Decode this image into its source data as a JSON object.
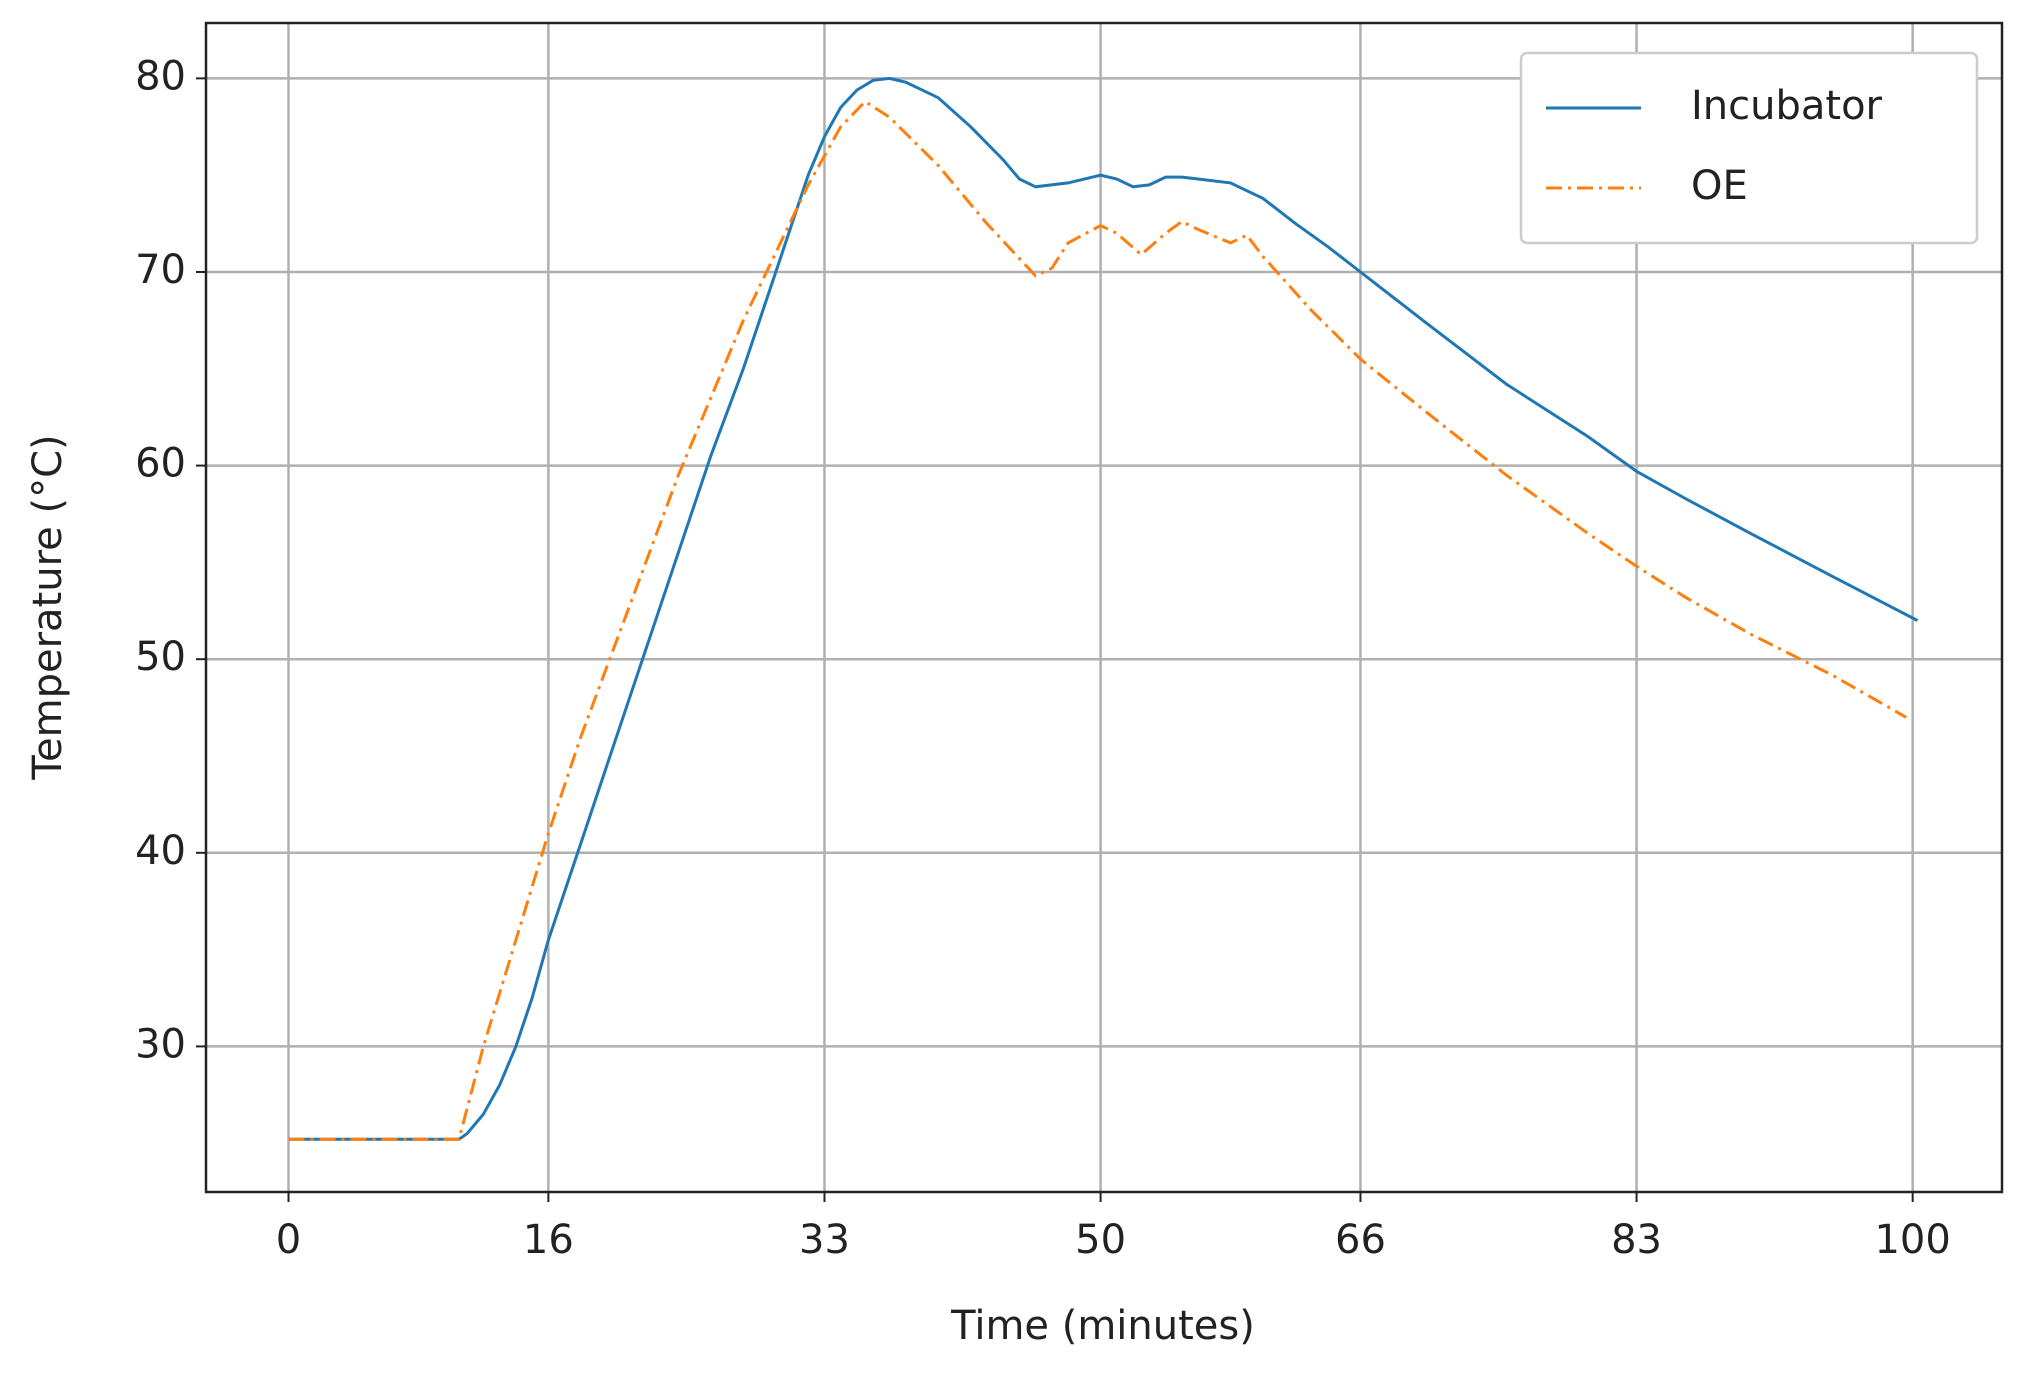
{
  "chart_data": {
    "type": "line",
    "x_label": "Time (minutes)",
    "y_label": "Temperature (°C)",
    "xlim": [
      -5.08,
      105.5
    ],
    "ylim": [
      22.48,
      82.86
    ],
    "xticks": [
      0,
      16,
      33,
      50,
      66,
      83,
      100
    ],
    "yticks": [
      30,
      40,
      50,
      60,
      70,
      80
    ],
    "grid": true,
    "legend": "upper right",
    "series": [
      {
        "name": "Incubator",
        "color": "#1f77b4",
        "style": "solid",
        "x": [
          0,
          5,
          10.5,
          11,
          12,
          13,
          14,
          15,
          16,
          18,
          20,
          22,
          24,
          26,
          28,
          30,
          32,
          33,
          34,
          35,
          36,
          37,
          38,
          40,
          42,
          44,
          45,
          46,
          48,
          50,
          51,
          52,
          53,
          54,
          55,
          56,
          58,
          60,
          62,
          64,
          66,
          70,
          75,
          80,
          83,
          86,
          90,
          95,
          100.3
        ],
        "values": [
          25.2,
          25.2,
          25.2,
          25.5,
          26.5,
          28,
          30,
          32.5,
          35.5,
          40.5,
          45.5,
          50.5,
          55.5,
          60.5,
          65,
          70,
          75,
          77,
          78.5,
          79.4,
          79.9,
          80,
          79.8,
          79,
          77.5,
          75.8,
          74.8,
          74.4,
          74.6,
          75,
          74.8,
          74.4,
          74.5,
          74.9,
          74.9,
          74.8,
          74.6,
          73.8,
          72.5,
          71.3,
          70,
          67.4,
          64.2,
          61.5,
          59.7,
          58.3,
          56.5,
          54.3,
          52
        ]
      },
      {
        "name": "OE",
        "color": "#ff7f0e",
        "style": "dashdot",
        "x": [
          0,
          5,
          10.5,
          12,
          14,
          16,
          18,
          20,
          22,
          24,
          26,
          28,
          30,
          32,
          34,
          35.5,
          37,
          40,
          43,
          46,
          47,
          48,
          50,
          51,
          52.5,
          54,
          55,
          56,
          58,
          59,
          60,
          63,
          66,
          70,
          75,
          80,
          83,
          86,
          90,
          95,
          99.6
        ],
        "values": [
          25.2,
          25.2,
          25.2,
          30,
          35.5,
          41,
          46,
          50.5,
          55,
          59.5,
          63.5,
          67.5,
          71,
          74.5,
          77.5,
          78.8,
          78,
          75.5,
          72.5,
          69.8,
          70.2,
          71.5,
          72.4,
          72,
          70.9,
          72,
          72.6,
          72.2,
          71.5,
          71.9,
          70.8,
          68,
          65.5,
          62.8,
          59.5,
          56.5,
          54.8,
          53.2,
          51.3,
          49.2,
          47
        ]
      }
    ]
  }
}
